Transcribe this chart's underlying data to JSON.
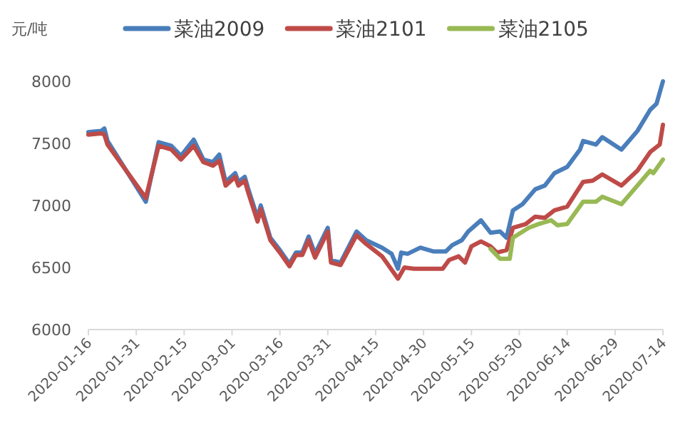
{
  "chart_data": {
    "type": "line",
    "ylabel": "元/吨",
    "ylim": [
      6000,
      8000
    ],
    "yticks": [
      6000,
      6500,
      7000,
      7500,
      8000
    ],
    "xlim": [
      "2020-01-16",
      "2020-07-14"
    ],
    "xticks": [
      "2020-01-16",
      "2020-01-31",
      "2020-02-15",
      "2020-03-01",
      "2020-03-16",
      "2020-03-31",
      "2020-04-15",
      "2020-04-30",
      "2020-05-15",
      "2020-05-30",
      "2020-06-14",
      "2020-06-29",
      "2020-07-14"
    ],
    "legend": "top",
    "grid": false,
    "marker": "none",
    "line_style": "solid",
    "series": [
      {
        "name": "菜油2009",
        "color": "#4a7ebb",
        "x": [
          "2020-01-16",
          "2020-01-20",
          "2020-01-21",
          "2020-01-22",
          "2020-02-03",
          "2020-02-07",
          "2020-02-11",
          "2020-02-14",
          "2020-02-18",
          "2020-02-21",
          "2020-02-24",
          "2020-02-26",
          "2020-02-28",
          "2020-03-02",
          "2020-03-03",
          "2020-03-05",
          "2020-03-06",
          "2020-03-09",
          "2020-03-10",
          "2020-03-13",
          "2020-03-16",
          "2020-03-19",
          "2020-03-21",
          "2020-03-23",
          "2020-03-25",
          "2020-03-27",
          "2020-03-31",
          "2020-04-01",
          "2020-04-04",
          "2020-04-09",
          "2020-04-12",
          "2020-04-17",
          "2020-04-20",
          "2020-04-22",
          "2020-04-23",
          "2020-04-25",
          "2020-04-29",
          "2020-05-03",
          "2020-05-07",
          "2020-05-09",
          "2020-05-12",
          "2020-05-14",
          "2020-05-18",
          "2020-05-21",
          "2020-05-24",
          "2020-05-26",
          "2020-05-28",
          "2020-05-31",
          "2020-06-04",
          "2020-06-07",
          "2020-06-10",
          "2020-06-14",
          "2020-06-18",
          "2020-06-19",
          "2020-06-23",
          "2020-06-25",
          "2020-07-01",
          "2020-07-06",
          "2020-07-10",
          "2020-07-12",
          "2020-07-14"
        ],
        "values": [
          7590,
          7600,
          7620,
          7520,
          7030,
          7510,
          7480,
          7400,
          7530,
          7370,
          7350,
          7410,
          7190,
          7260,
          7190,
          7230,
          7140,
          6900,
          7000,
          6740,
          6640,
          6530,
          6620,
          6620,
          6750,
          6610,
          6820,
          6560,
          6540,
          6790,
          6720,
          6660,
          6610,
          6490,
          6620,
          6610,
          6660,
          6630,
          6630,
          6680,
          6720,
          6790,
          6880,
          6780,
          6790,
          6740,
          6960,
          7010,
          7130,
          7160,
          7260,
          7310,
          7450,
          7520,
          7490,
          7550,
          7450,
          7600,
          7770,
          7820,
          8000
        ]
      },
      {
        "name": "菜油2101",
        "color": "#be4b48",
        "x": [
          "2020-01-16",
          "2020-01-20",
          "2020-01-21",
          "2020-01-22",
          "2020-02-03",
          "2020-02-07",
          "2020-02-11",
          "2020-02-14",
          "2020-02-18",
          "2020-02-21",
          "2020-02-24",
          "2020-02-26",
          "2020-02-28",
          "2020-03-02",
          "2020-03-03",
          "2020-03-05",
          "2020-03-06",
          "2020-03-09",
          "2020-03-10",
          "2020-03-13",
          "2020-03-16",
          "2020-03-19",
          "2020-03-21",
          "2020-03-23",
          "2020-03-25",
          "2020-03-27",
          "2020-03-31",
          "2020-04-01",
          "2020-04-04",
          "2020-04-09",
          "2020-04-12",
          "2020-04-17",
          "2020-04-22",
          "2020-04-24",
          "2020-04-27",
          "2020-05-06",
          "2020-05-08",
          "2020-05-11",
          "2020-05-13",
          "2020-05-15",
          "2020-05-18",
          "2020-05-21",
          "2020-05-23",
          "2020-05-26",
          "2020-05-28",
          "2020-06-01",
          "2020-06-04",
          "2020-06-07",
          "2020-06-10",
          "2020-06-14",
          "2020-06-19",
          "2020-06-22",
          "2020-06-25",
          "2020-07-01",
          "2020-07-06",
          "2020-07-10",
          "2020-07-13",
          "2020-07-14"
        ],
        "values": [
          7570,
          7580,
          7570,
          7490,
          7060,
          7480,
          7450,
          7370,
          7480,
          7350,
          7320,
          7360,
          7160,
          7230,
          7160,
          7200,
          7110,
          6870,
          6970,
          6720,
          6620,
          6510,
          6600,
          6600,
          6720,
          6580,
          6790,
          6540,
          6520,
          6760,
          6690,
          6590,
          6410,
          6500,
          6490,
          6490,
          6560,
          6590,
          6540,
          6670,
          6710,
          6670,
          6620,
          6640,
          6820,
          6850,
          6910,
          6900,
          6960,
          6990,
          7190,
          7200,
          7250,
          7160,
          7280,
          7430,
          7490,
          7650
        ]
      },
      {
        "name": "菜油2105",
        "color": "#98b954",
        "x": [
          "2020-05-21",
          "2020-05-24",
          "2020-05-27",
          "2020-05-28",
          "2020-06-02",
          "2020-06-05",
          "2020-06-09",
          "2020-06-11",
          "2020-06-14",
          "2020-06-19",
          "2020-06-23",
          "2020-06-25",
          "2020-07-01",
          "2020-07-10",
          "2020-07-11",
          "2020-07-14"
        ],
        "values": [
          6650,
          6570,
          6570,
          6740,
          6820,
          6850,
          6880,
          6840,
          6850,
          7030,
          7030,
          7070,
          7010,
          7280,
          7260,
          7370
        ]
      }
    ]
  }
}
